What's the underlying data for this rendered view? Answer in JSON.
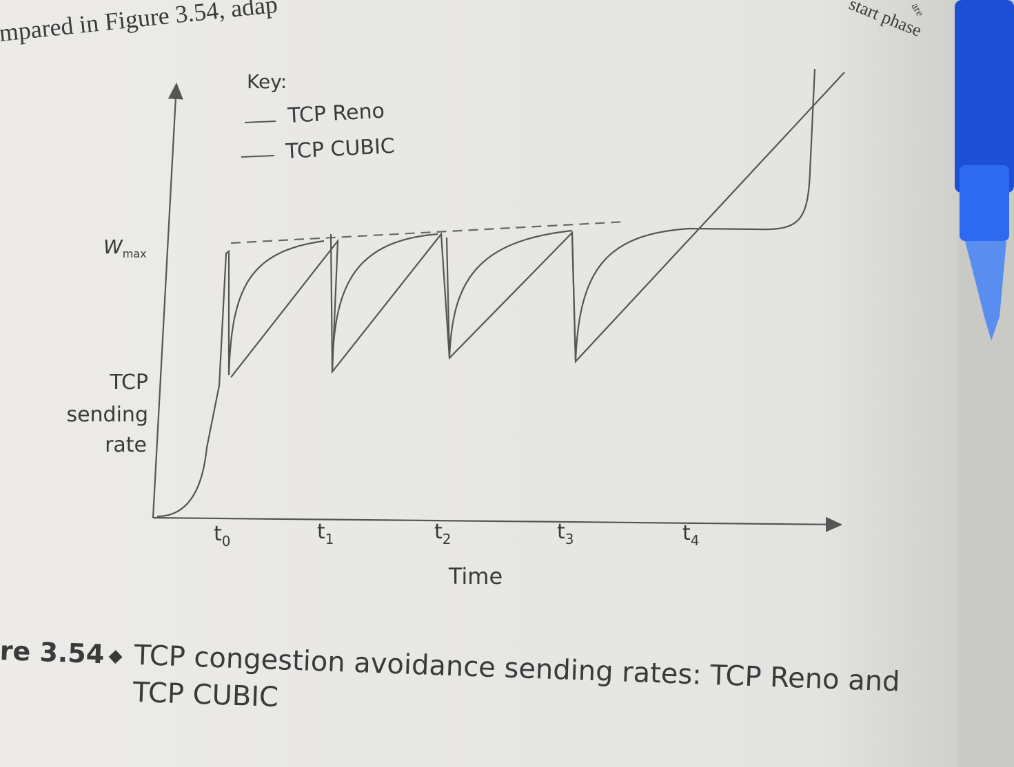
{
  "header_text": "mpared in Figure 3.54, adap",
  "corner_text": {
    "phase": "start phase",
    "partial": "are"
  },
  "key": {
    "title": "Key:",
    "items": [
      "TCP Reno",
      "TCP CUBIC"
    ]
  },
  "y_axis": {
    "wmax": {
      "main": "W",
      "sub": "max"
    },
    "label": [
      "TCP",
      "sending",
      "rate"
    ]
  },
  "x_axis": {
    "ticks": [
      {
        "main": "t",
        "sub": "0"
      },
      {
        "main": "t",
        "sub": "1"
      },
      {
        "main": "t",
        "sub": "2"
      },
      {
        "main": "t",
        "sub": "3"
      },
      {
        "main": "t",
        "sub": "4"
      }
    ],
    "label": "Time"
  },
  "caption": {
    "number": "re 3.54",
    "separator": "◆",
    "lines": [
      "TCP congestion avoidance sending rates: TCP Reno and",
      "TCP CUBIC"
    ]
  }
}
